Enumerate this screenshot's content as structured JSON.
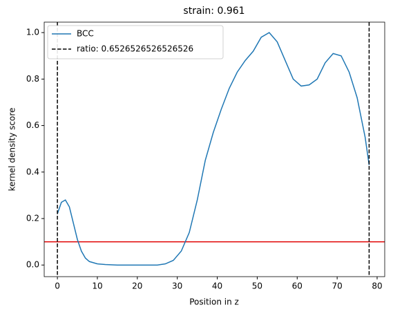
{
  "chart_data": {
    "type": "line",
    "title": "strain: 0.961",
    "xlabel": "Position in z",
    "ylabel": "kernel density score",
    "x": [
      0,
      1,
      2,
      3,
      4,
      5,
      6,
      7,
      8,
      10,
      12,
      15,
      20,
      25,
      27,
      29,
      31,
      33,
      35,
      37,
      39,
      41,
      43,
      45,
      47,
      49,
      51,
      53,
      55,
      57,
      59,
      61,
      63,
      65,
      67,
      69,
      71,
      73,
      75,
      77,
      78
    ],
    "series": [
      {
        "name": "BCC",
        "color": "#1f77b4",
        "values": [
          0.22,
          0.27,
          0.28,
          0.25,
          0.18,
          0.11,
          0.06,
          0.03,
          0.015,
          0.005,
          0.002,
          0,
          0,
          0,
          0.005,
          0.02,
          0.06,
          0.14,
          0.28,
          0.45,
          0.57,
          0.67,
          0.76,
          0.83,
          0.88,
          0.92,
          0.98,
          1.0,
          0.96,
          0.88,
          0.8,
          0.77,
          0.775,
          0.8,
          0.87,
          0.91,
          0.9,
          0.83,
          0.72,
          0.55,
          0.43
        ]
      }
    ],
    "vlines": {
      "name": "ratio: 0.6526526526526526",
      "color": "#000000",
      "values": [
        0,
        78
      ]
    },
    "hline": {
      "value": 0.1,
      "color": "#e00000"
    },
    "xlim": [
      -3.3,
      81.9
    ],
    "ylim": [
      -0.05,
      1.045
    ],
    "xticks": [
      0,
      10,
      20,
      30,
      40,
      50,
      60,
      70,
      80
    ],
    "yticks": [
      {
        "value": 0,
        "label": "0.0"
      },
      {
        "value": 0.2,
        "label": "0.2"
      },
      {
        "value": 0.4,
        "label": "0.4"
      },
      {
        "value": 0.6,
        "label": "0.6"
      },
      {
        "value": 0.8,
        "label": "0.8"
      },
      {
        "value": 1.0,
        "label": "1.0"
      }
    ],
    "legend": "upper left"
  }
}
